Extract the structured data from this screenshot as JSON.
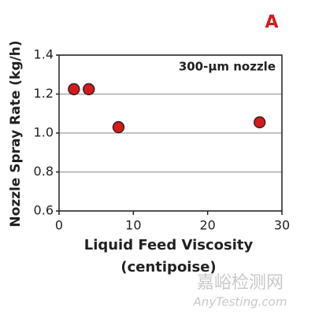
{
  "chart_data": {
    "type": "scatter",
    "panel_label": "A",
    "annotation": "300-µm nozzle",
    "xlabel": [
      "Liquid Feed Viscosity",
      "(centipoise)"
    ],
    "ylabel": "Nozzle Spray Rate (kg/h)",
    "x": [
      2,
      4,
      8,
      27
    ],
    "values": [
      1.225,
      1.225,
      1.03,
      1.055
    ],
    "color": "#d7191c",
    "xlim": [
      0,
      30
    ],
    "ylim": [
      0.6,
      1.4
    ],
    "xticks": [
      0,
      10,
      20,
      30
    ],
    "yticks": [
      0.6,
      0.8,
      {
        "value": 1,
        "label": "1.0"
      },
      1.2,
      1.4
    ],
    "grid": true
  },
  "watermark": {
    "title": "嘉峪检测网",
    "url": "AnyTesting.com"
  }
}
